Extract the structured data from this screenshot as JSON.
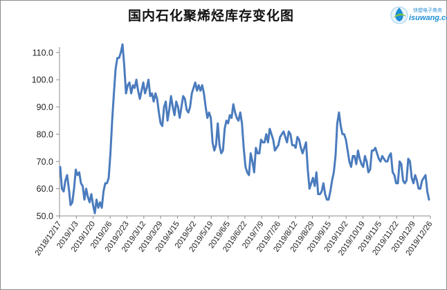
{
  "title": "国内石化聚烯烃库存变化图",
  "logo": {
    "top_text": "快塑电子商务",
    "bottom_text": "isuwang.com",
    "icon": "droplet-swirl-icon"
  },
  "colors": {
    "line": "#4a7bbd",
    "axis": "#8c8c8c",
    "text": "#222222",
    "logo_green": "#7cc242",
    "logo_blue": "#1f8fd6"
  },
  "chart_data": {
    "type": "line",
    "title": "国内石化聚烯烃库存变化图",
    "xlabel": "",
    "ylabel": "",
    "ylim": [
      50,
      112
    ],
    "yticks": [
      "50.0",
      "60.0",
      "70.0",
      "80.0",
      "90.0",
      "100.0",
      "110.0"
    ],
    "x_tick_labels": [
      "2018/12/17",
      "2019/1/3",
      "2019/1/20",
      "2019/2/6",
      "2019/2/23",
      "2019/3/12",
      "2019/3/29",
      "2019/4/15",
      "2019/5/2",
      "2019/5/19",
      "2019/6/5",
      "2019/6/22",
      "2019/7/9",
      "2019/7/26",
      "2019/8/12",
      "2019/8/29",
      "2019/9/15",
      "2019/10/2",
      "2019/10/19",
      "2019/11/5",
      "2019/11/22",
      "2019/12/9",
      "2019/12/26"
    ],
    "grid": false,
    "legend": "none",
    "x_start": "2018/12/17",
    "x_end": "2019/12/26",
    "series": [
      {
        "name": "",
        "values": [
          68,
          60,
          59,
          63,
          65,
          60,
          54,
          55,
          60,
          67,
          65,
          66,
          62,
          61,
          56,
          60,
          57,
          55,
          58,
          54,
          51,
          56,
          53,
          55,
          53,
          59,
          62,
          62,
          64,
          73,
          85,
          95,
          104,
          108,
          108,
          110,
          113,
          105,
          95,
          98,
          99,
          95,
          98,
          97,
          100,
          96,
          93,
          96,
          99,
          95,
          97,
          100,
          94,
          95,
          92,
          95,
          93,
          88,
          84,
          83,
          90,
          92,
          85,
          89,
          94,
          90,
          87,
          92,
          90,
          86,
          90,
          94,
          93,
          89,
          88,
          90,
          95,
          97,
          99,
          96,
          98,
          96,
          98,
          95,
          90,
          86,
          88,
          86,
          77,
          74,
          76,
          84,
          76,
          73,
          74,
          82,
          85,
          84,
          87,
          86,
          91,
          88,
          86,
          85,
          88,
          84,
          75,
          68,
          66,
          65,
          73,
          70,
          66,
          75,
          73,
          73,
          78,
          77,
          77,
          80,
          77,
          82,
          80,
          78,
          74,
          75,
          76,
          79,
          80,
          81,
          79,
          77,
          81,
          80,
          76,
          76,
          75,
          79,
          78,
          75,
          73,
          75,
          77,
          67,
          60,
          62,
          64,
          61,
          66,
          58,
          58,
          59,
          62,
          58,
          56,
          56,
          59,
          63,
          66,
          72,
          84,
          88,
          83,
          80,
          80,
          78,
          74,
          70,
          68,
          72,
          72,
          69,
          74,
          71,
          69,
          68,
          72,
          70,
          66,
          67,
          74,
          74,
          75,
          73,
          71,
          70,
          72,
          71,
          70,
          70,
          72,
          73,
          66,
          65,
          62,
          62,
          70,
          69,
          63,
          62,
          63,
          71,
          70,
          64,
          62,
          65,
          63,
          60,
          60,
          63,
          64,
          65,
          59,
          56
        ]
      }
    ]
  }
}
